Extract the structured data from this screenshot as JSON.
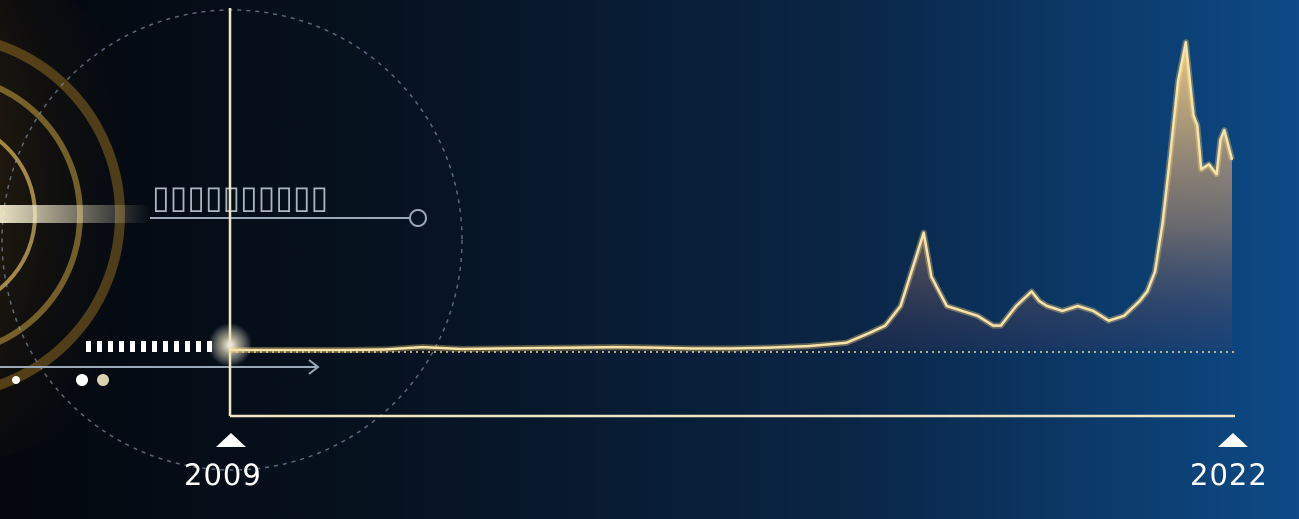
{
  "chart_data": {
    "type": "area",
    "title": "",
    "xlabel": "",
    "ylabel": "",
    "x_ticks": [
      "2009",
      "2022"
    ],
    "x": [
      2009.0,
      2009.5,
      2010.0,
      2010.5,
      2011.0,
      2011.5,
      2012.0,
      2012.5,
      2013.0,
      2013.5,
      2014.0,
      2014.5,
      2015.0,
      2015.5,
      2016.0,
      2016.5,
      2017.0,
      2017.3,
      2017.5,
      2017.7,
      2017.9,
      2018.0,
      2018.1,
      2018.2,
      2018.3,
      2018.5,
      2018.7,
      2018.9,
      2019.0,
      2019.2,
      2019.4,
      2019.5,
      2019.6,
      2019.8,
      2020.0,
      2020.2,
      2020.4,
      2020.6,
      2020.8,
      2020.9,
      2021.0,
      2021.1,
      2021.2,
      2021.3,
      2021.4,
      2021.5,
      2021.55,
      2021.6,
      2021.7,
      2021.8,
      2021.85,
      2021.9,
      2022.0
    ],
    "values": [
      0,
      0,
      0,
      0,
      0.1,
      0.6,
      0.2,
      0.3,
      0.4,
      0.5,
      0.6,
      0.5,
      0.3,
      0.3,
      0.5,
      0.8,
      1.5,
      3.5,
      5,
      9,
      19,
      24,
      15,
      12,
      9,
      8,
      7,
      5,
      5,
      9,
      12,
      10,
      9,
      8,
      9,
      8,
      6,
      7,
      10,
      12,
      16,
      26,
      40,
      55,
      63,
      48,
      46,
      37,
      38,
      36,
      43,
      45,
      39
    ],
    "ylim": [
      0,
      70
    ],
    "grid": false,
    "legend": "none",
    "line_color": "#f7e3a8",
    "fill_color": "#e8c070",
    "axis_color": "#f1e6c4"
  },
  "decor": {
    "label_text": "▯▯▯▯▯▯▯▯▯▯"
  }
}
